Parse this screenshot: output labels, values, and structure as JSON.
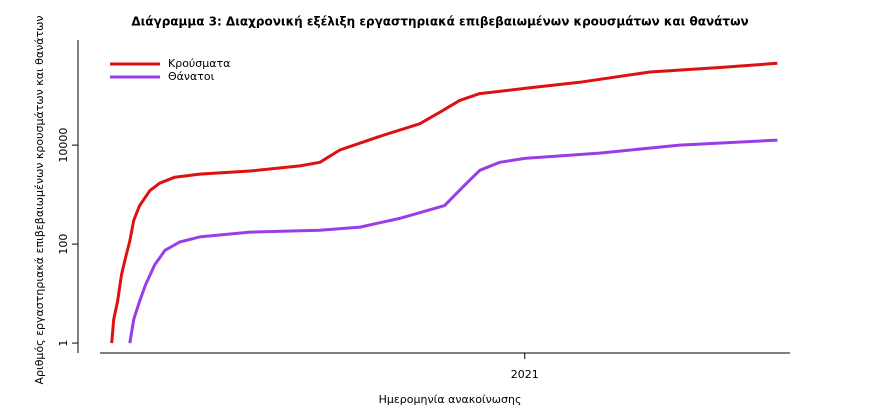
{
  "chart_data": {
    "type": "line",
    "title": "Διάγραμμα 3: Διαχρονική εξέλιξη εργαστηριακά επιβεβαιωμένων κρουσμάτων και θανάτων",
    "x_label": "Ημερομηνία ανακοίνωσης",
    "y_label": "Αριθμός εργαστηριακά επιβεβαιωμένων κρουσμάτων και θανάτων",
    "log_y": true,
    "legend": "top-left",
    "xlim": [
      2020.086,
      2021.6
    ],
    "xticks": [
      2021
    ],
    "ylim": [
      0.63,
      1300000
    ],
    "yticks": [
      1,
      100,
      10000
    ],
    "series": [
      {
        "name": "Κρούσματα",
        "color": "#dd1111",
        "x": [
          2020.155,
          2020.159,
          2020.167,
          2020.175,
          2020.183,
          2020.192,
          2020.2,
          2020.212,
          2020.233,
          2020.253,
          2020.284,
          2020.335,
          2020.438,
          2020.54,
          2020.581,
          2020.622,
          2020.703,
          2020.785,
          2020.826,
          2020.867,
          2020.908,
          2021.0,
          2021.112,
          2021.256,
          2021.399,
          2021.517
        ],
        "values": [
          1,
          3,
          7,
          24,
          52,
          115,
          300,
          600,
          1200,
          1700,
          2250,
          2600,
          3000,
          3800,
          4500,
          8000,
          15000,
          27000,
          46000,
          80000,
          110000,
          140000,
          186000,
          300000,
          370000,
          450000
        ]
      },
      {
        "name": "Θάνατοι",
        "color": "#9a3de8",
        "x": [
          2020.192,
          2020.2,
          2020.212,
          2020.224,
          2020.243,
          2020.264,
          2020.294,
          2020.335,
          2020.438,
          2020.581,
          2020.663,
          2020.744,
          2020.836,
          2020.877,
          2020.908,
          2020.949,
          2021.0,
          2021.153,
          2021.317,
          2021.517
        ],
        "values": [
          1,
          3,
          7,
          15,
          38,
          75,
          110,
          140,
          175,
          190,
          220,
          330,
          600,
          1550,
          3100,
          4500,
          5400,
          6900,
          10000,
          12600
        ]
      }
    ]
  }
}
